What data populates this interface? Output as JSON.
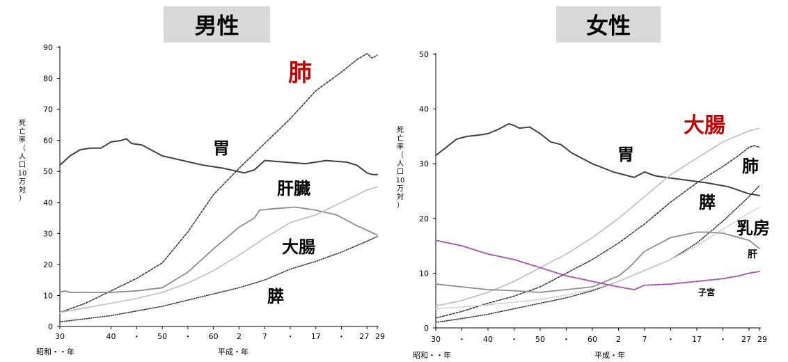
{
  "panels": {
    "male_title": "男性",
    "female_title": "女性"
  },
  "colors": {
    "highlight": "#c00000",
    "uterus": "#a64ca6",
    "axis": "#000000"
  },
  "chart_data": [
    {
      "type": "line",
      "panel": "男性",
      "ylabel": "死亡率（人口10万対）",
      "ylim": [
        0,
        90
      ],
      "yticks": [
        0,
        10,
        20,
        30,
        40,
        50,
        60,
        70,
        80,
        90
      ],
      "xlim": [
        0,
        62
      ],
      "xtick_labels": [
        "30",
        "40",
        "・",
        "50",
        "・",
        "60",
        "2",
        "7",
        "・",
        "17",
        "・",
        "27",
        "29"
      ],
      "xtick_positions": [
        0,
        10,
        15,
        20,
        25,
        30,
        35,
        40,
        45,
        50,
        55,
        60,
        62
      ],
      "era_label_left": "昭和・・年",
      "era_label_right": "平成・年",
      "series": [
        {
          "name": "肺",
          "style": "dashed-dark",
          "highlight": true,
          "x": [
            0,
            5,
            10,
            15,
            20,
            25,
            30,
            35,
            40,
            45,
            50,
            55,
            58,
            60,
            61,
            62
          ],
          "values": [
            4.5,
            7.5,
            11.5,
            15.5,
            20.5,
            30.5,
            42.5,
            51,
            59,
            67,
            76,
            82,
            86,
            88,
            86.5,
            87.5
          ]
        },
        {
          "name": "胃",
          "style": "solid-dark",
          "x": [
            0,
            2,
            4,
            6,
            8,
            10,
            12,
            13,
            14,
            16,
            20,
            24,
            28,
            32,
            36,
            38,
            40,
            44,
            48,
            52,
            56,
            58,
            60,
            61,
            62
          ],
          "values": [
            52,
            55,
            57,
            57.5,
            57.5,
            59.5,
            60,
            60.5,
            59,
            58.5,
            55,
            53.5,
            52,
            51,
            49.5,
            50.5,
            53.5,
            53,
            52.5,
            53.5,
            53,
            52,
            49.5,
            49,
            49
          ]
        },
        {
          "name": "肝臓",
          "style": "solid-gray",
          "x": [
            0,
            1,
            2,
            5,
            10,
            15,
            20,
            25,
            30,
            35,
            38,
            39,
            42,
            46,
            50,
            54,
            58,
            62
          ],
          "values": [
            11,
            11.5,
            11,
            11,
            11,
            11.5,
            12.5,
            17.5,
            25,
            32,
            35,
            37.5,
            38,
            38.5,
            37.5,
            36,
            32.5,
            29.5
          ]
        },
        {
          "name": "大腸",
          "style": "solid-light",
          "x": [
            0,
            5,
            10,
            15,
            20,
            25,
            30,
            35,
            40,
            45,
            50,
            55,
            60,
            62
          ],
          "values": [
            4.5,
            6,
            7.5,
            9,
            11,
            14,
            18,
            23,
            28.5,
            33.5,
            36,
            40,
            44,
            45
          ]
        },
        {
          "name": "膵",
          "style": "dotted-dark",
          "x": [
            0,
            5,
            10,
            15,
            20,
            25,
            30,
            35,
            40,
            45,
            50,
            55,
            60,
            62
          ],
          "values": [
            1.5,
            2.5,
            3.5,
            5,
            6.5,
            8.5,
            10.5,
            12.5,
            15,
            18.5,
            21,
            24,
            27.5,
            29
          ]
        }
      ],
      "labels": [
        {
          "text": "肺",
          "highlight": true
        },
        {
          "text": "胃"
        },
        {
          "text": "肝臓"
        },
        {
          "text": "大腸"
        },
        {
          "text": "膵"
        }
      ]
    },
    {
      "type": "line",
      "panel": "女性",
      "ylabel": "死亡率（人口10万対）",
      "ylim": [
        0,
        50
      ],
      "yticks": [
        0,
        10,
        20,
        30,
        40,
        50
      ],
      "xlim": [
        0,
        62
      ],
      "xtick_labels": [
        "30",
        "・",
        "40",
        "・",
        "50",
        "・",
        "60",
        "2",
        "7",
        "・",
        "17",
        "・",
        "27",
        "29"
      ],
      "xtick_positions": [
        0,
        5,
        10,
        15,
        20,
        25,
        30,
        35,
        40,
        45,
        50,
        55,
        60,
        62
      ],
      "era_label_left": "昭和・・年",
      "era_label_right": "平成・年",
      "series": [
        {
          "name": "胃",
          "style": "solid-dark",
          "x": [
            0,
            2,
            4,
            6,
            8,
            10,
            12,
            14,
            15,
            16,
            18,
            20,
            22,
            24,
            26,
            30,
            34,
            38,
            40,
            42,
            44,
            48,
            52,
            56,
            60,
            62
          ],
          "values": [
            31.5,
            33,
            34.5,
            35,
            35.2,
            35.5,
            36.3,
            37.3,
            37,
            36.5,
            36.7,
            35.5,
            34,
            33.5,
            32,
            30,
            28.5,
            27.5,
            28.5,
            27.8,
            27.5,
            27,
            26.5,
            25.8,
            24.5,
            24.2
          ]
        },
        {
          "name": "大腸",
          "style": "solid-light",
          "highlight": true,
          "x": [
            0,
            5,
            10,
            15,
            20,
            25,
            30,
            35,
            40,
            45,
            50,
            55,
            60,
            62
          ],
          "values": [
            4,
            5,
            6.5,
            8.5,
            11,
            13.5,
            16.5,
            20,
            24,
            28,
            31,
            34,
            36,
            36.5
          ]
        },
        {
          "name": "肺",
          "style": "dashed-dark",
          "x": [
            0,
            5,
            10,
            15,
            20,
            25,
            30,
            35,
            40,
            45,
            50,
            55,
            58,
            60,
            61,
            62
          ],
          "values": [
            1.8,
            3,
            4.5,
            5.8,
            7.5,
            10,
            12.5,
            15.5,
            19,
            23,
            26.5,
            29.5,
            31.5,
            33,
            33.3,
            33
          ]
        },
        {
          "name": "膵",
          "style": "dotted-dark",
          "x": [
            0,
            5,
            10,
            15,
            20,
            25,
            30,
            35,
            40,
            45,
            50,
            55,
            60,
            62
          ],
          "values": [
            1,
            1.7,
            2.5,
            3.5,
            4.5,
            5.5,
            6.8,
            8.5,
            10.5,
            12.5,
            15.5,
            19.5,
            24,
            26
          ]
        },
        {
          "name": "乳房",
          "style": "solid-lighter",
          "x": [
            0,
            5,
            10,
            15,
            20,
            25,
            30,
            35,
            40,
            45,
            50,
            55,
            60,
            62
          ],
          "values": [
            3.5,
            3.8,
            4.2,
            4.7,
            5.2,
            6,
            7,
            8.5,
            10.5,
            12.5,
            15,
            18,
            21,
            22
          ]
        },
        {
          "name": "肝",
          "style": "solid-gray",
          "x": [
            0,
            5,
            10,
            15,
            20,
            25,
            30,
            35,
            37,
            40,
            45,
            50,
            52,
            55,
            60,
            62
          ],
          "values": [
            8,
            7.5,
            7,
            6.8,
            6.5,
            7,
            7.5,
            9.5,
            11,
            14,
            16.5,
            17.5,
            17.5,
            17.3,
            16,
            14.5
          ]
        },
        {
          "name": "子宮",
          "style": "dotted-purple",
          "x": [
            0,
            5,
            10,
            15,
            20,
            25,
            30,
            35,
            38,
            40,
            45,
            50,
            55,
            58,
            60,
            62
          ],
          "values": [
            16,
            15,
            13.5,
            12.5,
            11,
            9.5,
            8.5,
            7.5,
            7,
            7.8,
            8,
            8.5,
            9,
            9.5,
            10,
            10.3
          ]
        }
      ],
      "labels": [
        {
          "text": "大腸",
          "highlight": true
        },
        {
          "text": "胃"
        },
        {
          "text": "肺"
        },
        {
          "text": "膵"
        },
        {
          "text": "乳房"
        },
        {
          "text": "肝"
        },
        {
          "text": "子宮"
        }
      ]
    }
  ]
}
